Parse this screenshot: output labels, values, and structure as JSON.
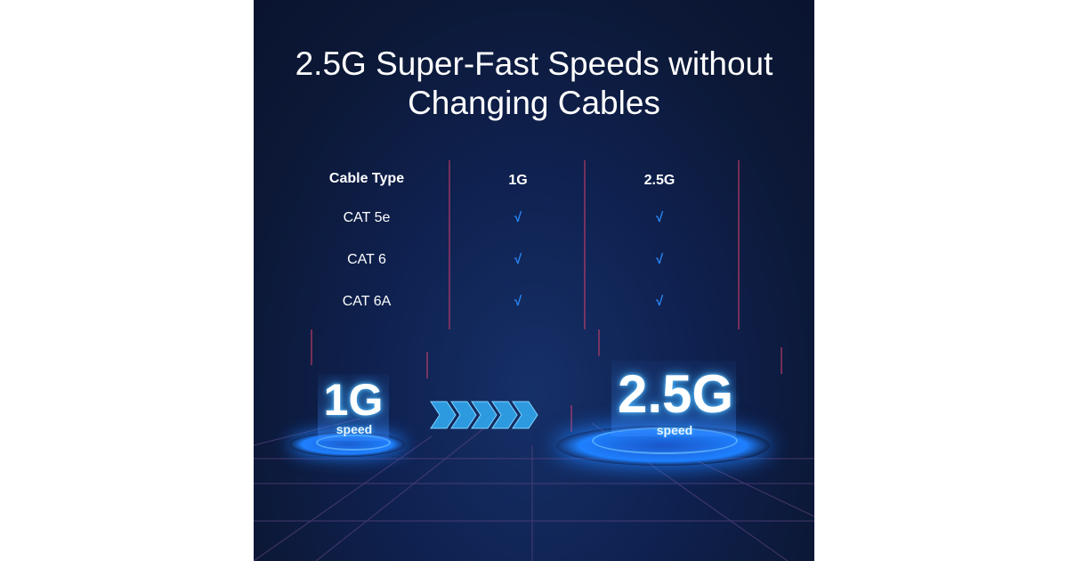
{
  "title_line1": "2.5G Super-Fast Speeds without",
  "title_line2": "Changing Cables",
  "table": {
    "headers": [
      "Cable Type",
      "1G",
      "2.5G"
    ],
    "rows": [
      {
        "type": "CAT 5e",
        "g1": "√",
        "g25": "√"
      },
      {
        "type": "CAT 6",
        "g1": "√",
        "g25": "√"
      },
      {
        "type": "CAT 6A",
        "g1": "√",
        "g25": "√"
      }
    ]
  },
  "left_badge": {
    "value": "1G",
    "label": "speed"
  },
  "right_badge": {
    "value": "2.5G",
    "label": "speed"
  },
  "colors": {
    "background": "#0f1a38",
    "accent": "#2a8cff",
    "glow": "#3ab0ff"
  }
}
